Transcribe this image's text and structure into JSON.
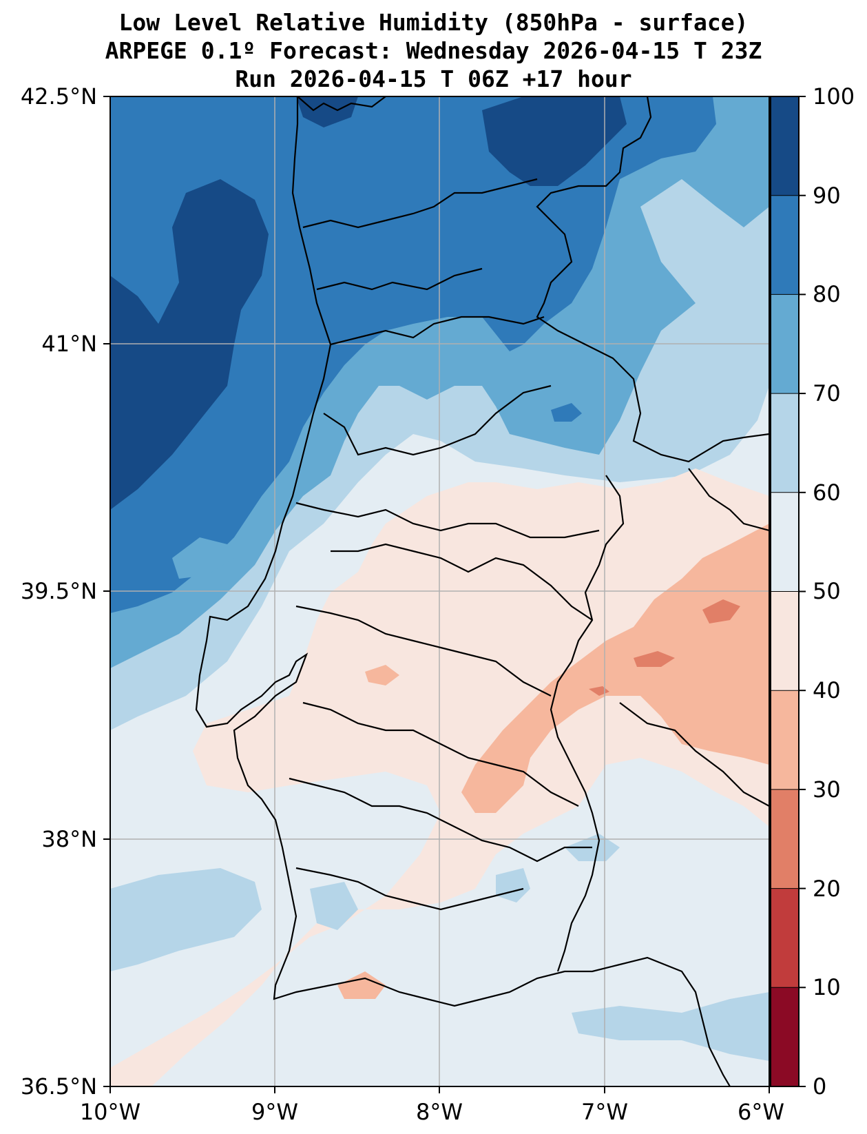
{
  "title": {
    "line1": "Low Level Relative Humidity (850hPa - surface)",
    "line2": "ARPEGE 0.1º Forecast: Wednesday 2026-04-15 T 23Z",
    "line3": "Run 2026-04-15 T 06Z +17 hour"
  },
  "map": {
    "lat_labels": [
      "42.5°N",
      "41°N",
      "39.5°N",
      "38°N",
      "36.5°N"
    ],
    "lon_labels": [
      "10°W",
      "9°W",
      "8°W",
      "7°W",
      "6°W"
    ]
  },
  "colorbar": {
    "labels": [
      "100",
      "90",
      "80",
      "70",
      "60",
      "50",
      "40",
      "30",
      "20",
      "10",
      "0"
    ],
    "colors": [
      "#164a86",
      "#2f7ab9",
      "#64aad2",
      "#b5d5e8",
      "#e4edf3",
      "#f8e6df",
      "#f6b79d",
      "#e17f67",
      "#c13c3c",
      "#8b0a25"
    ]
  },
  "chart_data": {
    "type": "contour-map",
    "variable": "Low Level Relative Humidity (850hPa - surface)",
    "units": "%",
    "levels": [
      0,
      10,
      20,
      30,
      40,
      50,
      60,
      70,
      80,
      90,
      100
    ],
    "lon_range": [
      -10,
      -6
    ],
    "lat_range": [
      36.5,
      42.5
    ]
  }
}
